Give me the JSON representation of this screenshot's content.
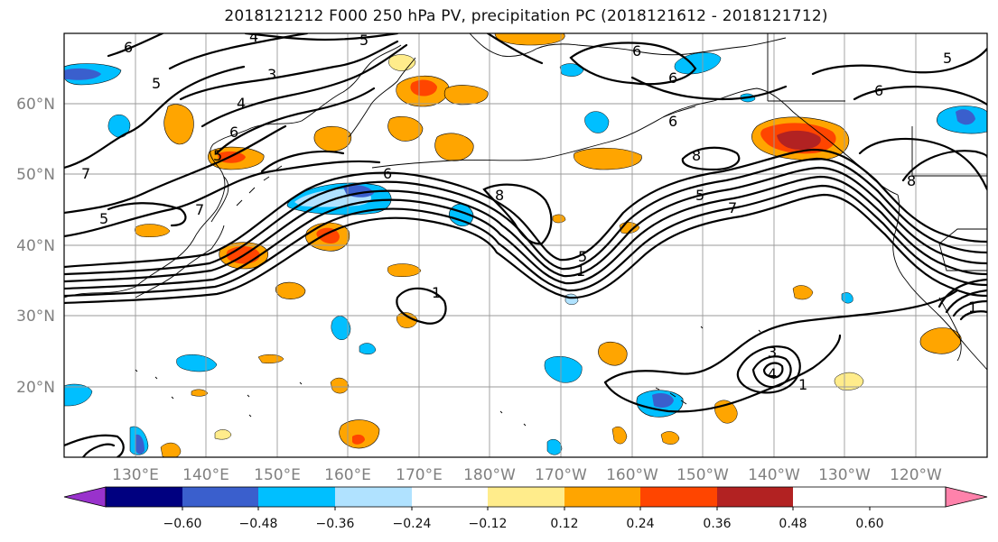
{
  "title": "2018121212 F000 250 hPa PV, precipitation PC (2018121612 - 2018121712)",
  "map": {
    "lat_labels": [
      "60°N",
      "50°N",
      "40°N",
      "30°N",
      "20°N"
    ],
    "lon_labels": [
      "130°E",
      "140°E",
      "150°E",
      "160°E",
      "170°E",
      "180°W",
      "170°W",
      "160°W",
      "150°W",
      "140°W",
      "130°W",
      "120°W"
    ],
    "contour_labels": [
      "6",
      "4",
      "5",
      "5",
      "3",
      "4",
      "5",
      "6",
      "7",
      "5",
      "6",
      "6",
      "8",
      "5",
      "7",
      "1",
      "5",
      "8",
      "7",
      "1",
      "3",
      "4",
      "1",
      "6",
      "6",
      "5",
      "6",
      "8",
      "1"
    ]
  },
  "colorbar": {
    "ticks": [
      "−0.60",
      "−0.48",
      "−0.36",
      "−0.24",
      "−0.12",
      "0.12",
      "0.24",
      "0.36",
      "0.48",
      "0.60"
    ],
    "colors": [
      "#9932cc",
      "#000080",
      "#3a5fcd",
      "#00bfff",
      "#b0e2ff",
      "#ffffff",
      "#ffec8b",
      "#ffa500",
      "#ff4500",
      "#b22222",
      "#ff82ab"
    ]
  },
  "colors": {
    "pos_light": "#ffec8b",
    "pos_mid": "#ffa500",
    "pos_strong": "#ff4500",
    "pos_max": "#b22222",
    "neg_light": "#b0e2ff",
    "neg_mid": "#00bfff",
    "neg_strong": "#3a5fcd"
  }
}
